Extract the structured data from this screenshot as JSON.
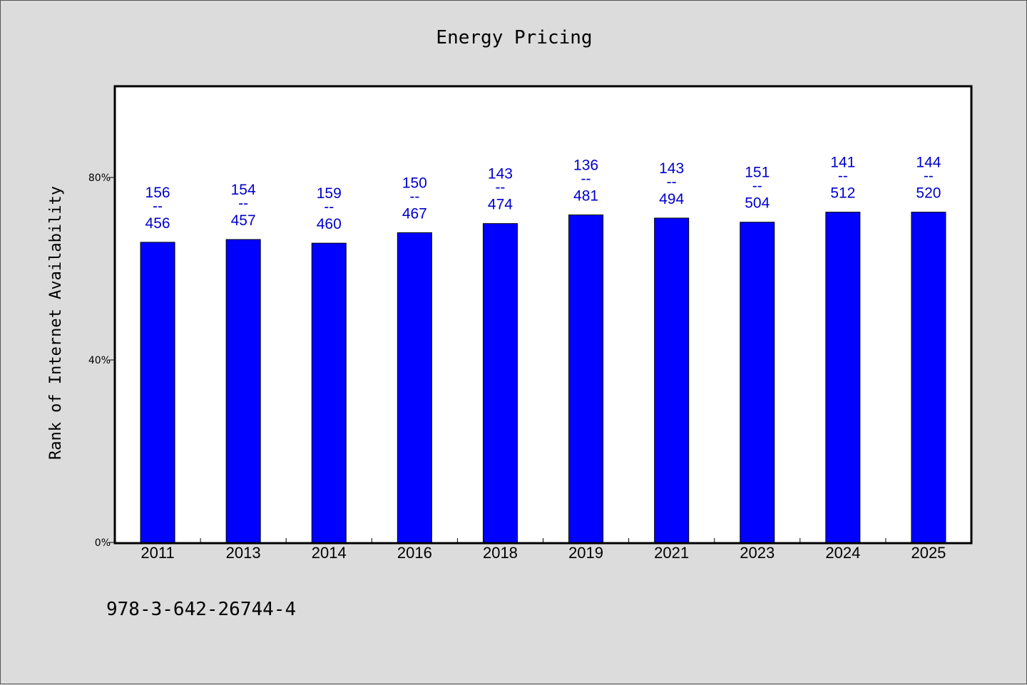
{
  "chart_data": {
    "type": "bar",
    "title": "Energy Pricing",
    "xlabel": "",
    "ylabel": "Rank of Internet Availability",
    "ylim": [
      0,
      100
    ],
    "yticks": [
      0,
      40,
      80
    ],
    "ytick_labels": [
      "0%",
      "40%",
      "80%"
    ],
    "categories": [
      "2011",
      "2013",
      "2014",
      "2016",
      "2018",
      "2019",
      "2021",
      "2023",
      "2024",
      "2025"
    ],
    "values": [
      65.8,
      66.4,
      65.6,
      67.9,
      69.9,
      71.8,
      71.1,
      70.2,
      72.4,
      72.4
    ],
    "label_top": [
      "156",
      "154",
      "159",
      "150",
      "143",
      "136",
      "143",
      "151",
      "141",
      "144"
    ],
    "label_sep": "--",
    "label_bottom": [
      "456",
      "457",
      "460",
      "467",
      "474",
      "481",
      "494",
      "504",
      "512",
      "520"
    ],
    "bar_color": "#0000ff",
    "label_color": "#0000cc",
    "grid": false,
    "legend": "none"
  },
  "footnote": "978-3-642-26744-4"
}
